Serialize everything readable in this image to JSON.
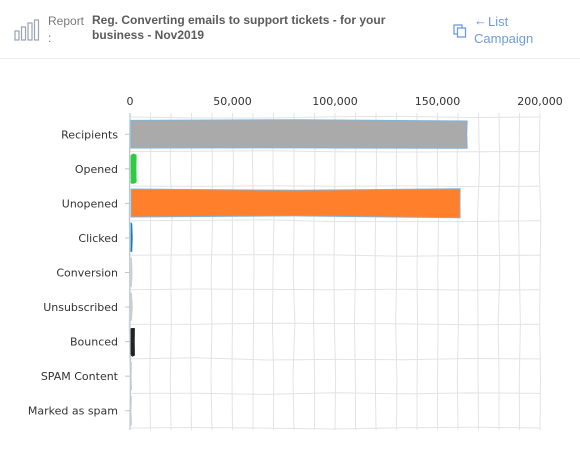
{
  "header": {
    "report_label": "Report :",
    "title": "Reg. Converting emails to support tickets - for your business - Nov2019",
    "list_campaign_label": "List Campaign",
    "icons": {
      "report": "bar-chart-icon",
      "copy": "copy-icon",
      "back": "arrow-left-icon"
    }
  },
  "chart_data": {
    "type": "bar",
    "orientation": "horizontal",
    "style": "hand-drawn",
    "categories": [
      "Recipients",
      "Opened",
      "Unopened",
      "Clicked",
      "Conversion",
      "Unsubscribed",
      "Bounced",
      "SPAM Content",
      "Marked as spam"
    ],
    "values": [
      164500,
      3000,
      161000,
      900,
      0,
      300,
      2200,
      600,
      200
    ],
    "colors": [
      "#aaaaaa",
      "#2ecc40",
      "#ff7f2a",
      "#1f77b4",
      "#cccccc",
      "#cccccc",
      "#222222",
      "#cccccc",
      "#cccccc"
    ],
    "xlim": [
      0,
      200000
    ],
    "xticks": [
      0,
      50000,
      100000,
      150000,
      200000
    ],
    "xtick_labels": [
      "0",
      "50,000",
      "100,000",
      "150,000",
      "200,000"
    ],
    "x_axis_position": "top",
    "grid": true,
    "title": "",
    "xlabel": "",
    "ylabel": ""
  }
}
